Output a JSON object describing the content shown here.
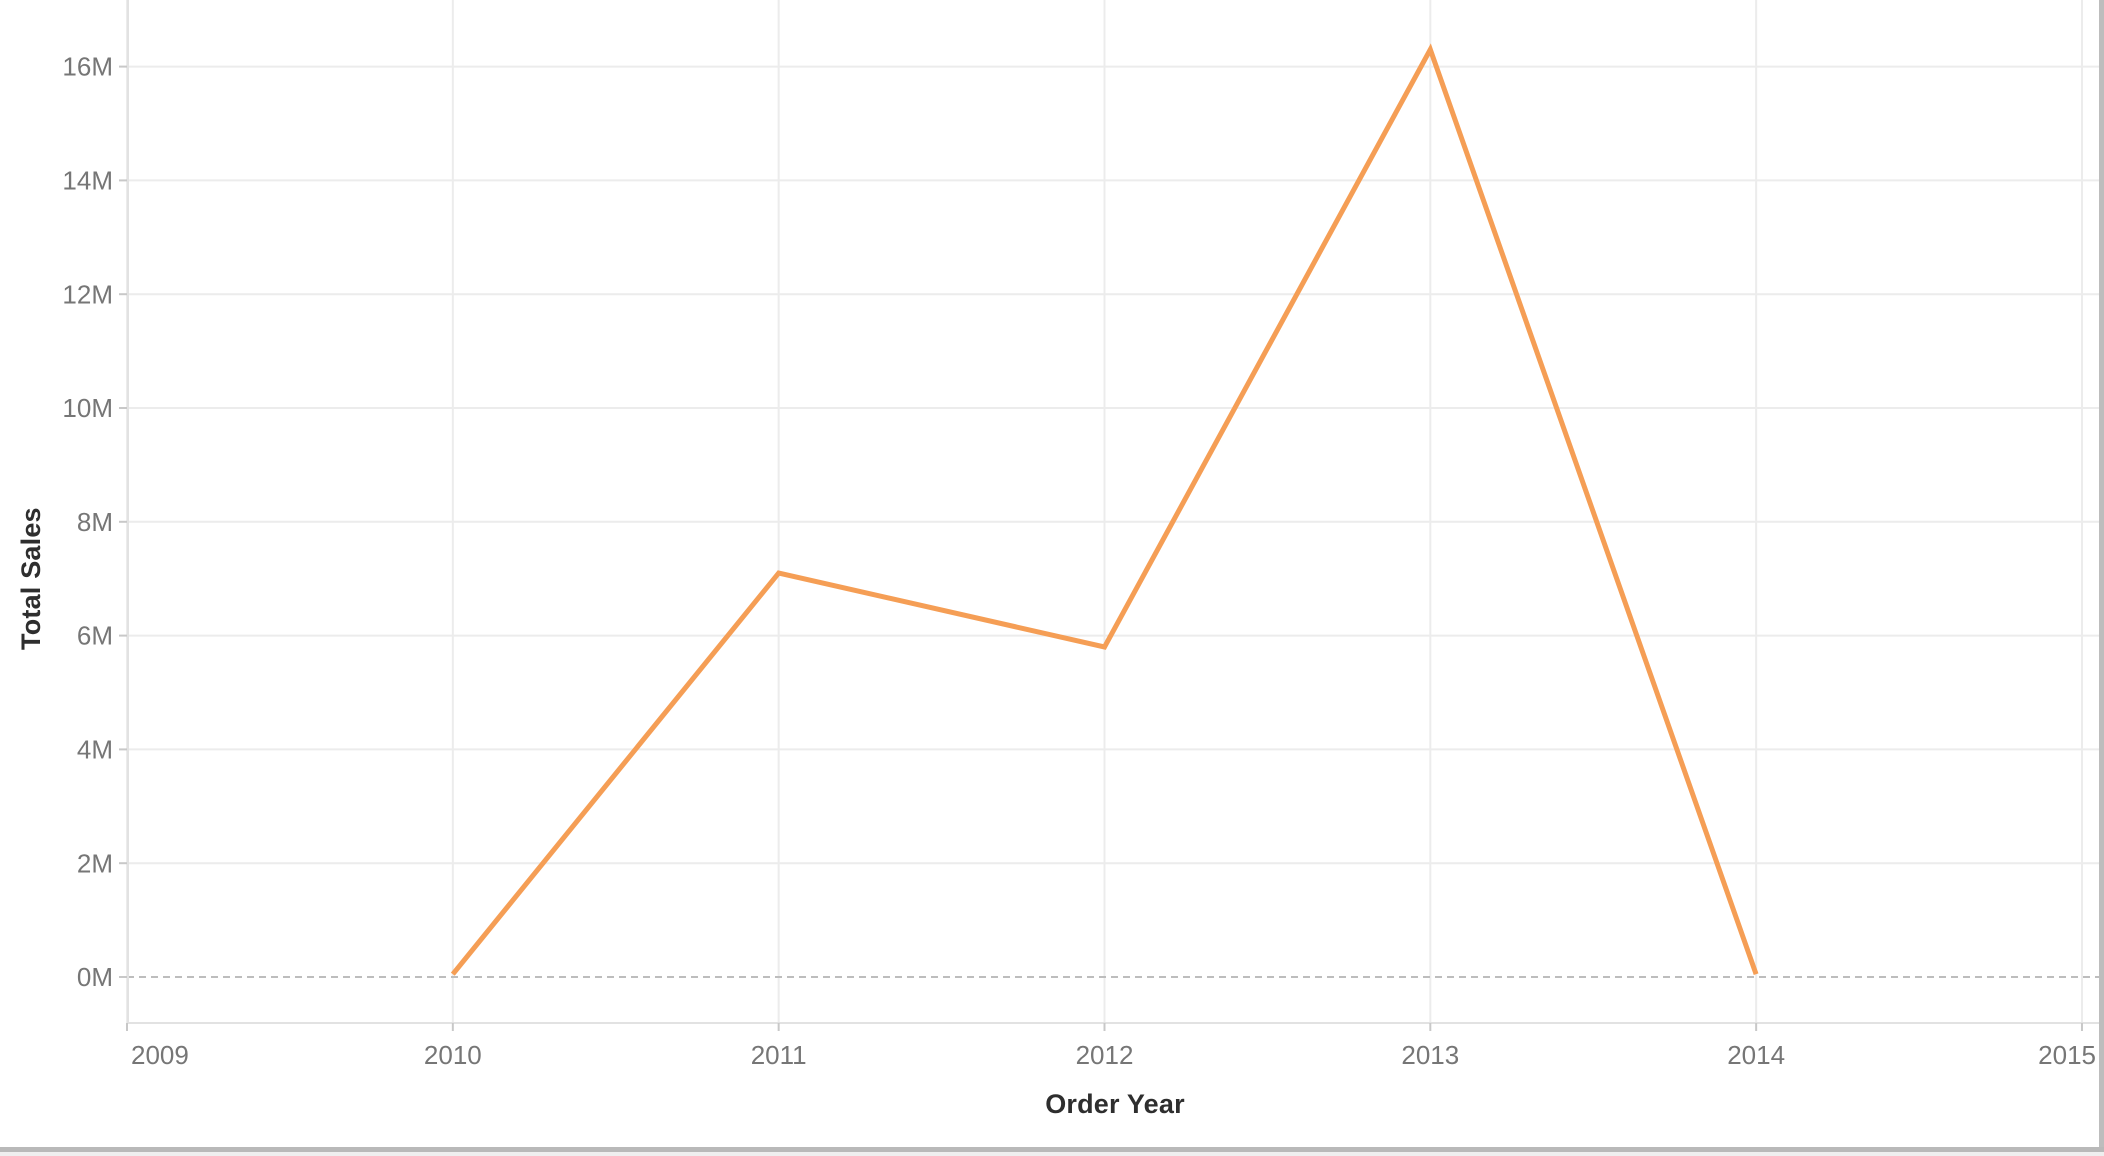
{
  "chart_data": {
    "type": "line",
    "title": "",
    "xlabel": "Order Year",
    "ylabel": "Total Sales",
    "x": [
      2010,
      2011,
      2012,
      2013,
      2014
    ],
    "series": [
      {
        "name": "Total Sales",
        "values_millions": [
          0.05,
          7.1,
          5.8,
          16.3,
          0.05
        ]
      }
    ],
    "x_axis": {
      "tick_labels": [
        "2009",
        "2010",
        "2011",
        "2012",
        "2013",
        "2014",
        "2015"
      ],
      "tick_values": [
        2009,
        2010,
        2011,
        2012,
        2013,
        2014,
        2015
      ],
      "range": [
        2009,
        2015
      ]
    },
    "y_axis": {
      "tick_labels": [
        "0M",
        "2M",
        "4M",
        "6M",
        "8M",
        "10M",
        "12M",
        "14M",
        "16M"
      ],
      "tick_values_millions": [
        0,
        2,
        4,
        6,
        8,
        10,
        12,
        14,
        16
      ],
      "range_millions": [
        0,
        17.2
      ],
      "unit": "M"
    },
    "grid": true,
    "zero_line": "dashed",
    "legend": "none"
  },
  "colors": {
    "line": "#F59E55",
    "gridline": "#ececec",
    "axis_line": "#e2e2e2",
    "tick_mark": "#c8c8c8",
    "tick_label": "#767676",
    "axis_title": "#2e2e2e",
    "zero_line": "#bdbdbd",
    "scrollbar": "#b9b9b9",
    "background": "#ffffff"
  },
  "scrollbars": {
    "horizontal": true,
    "vertical": true
  }
}
